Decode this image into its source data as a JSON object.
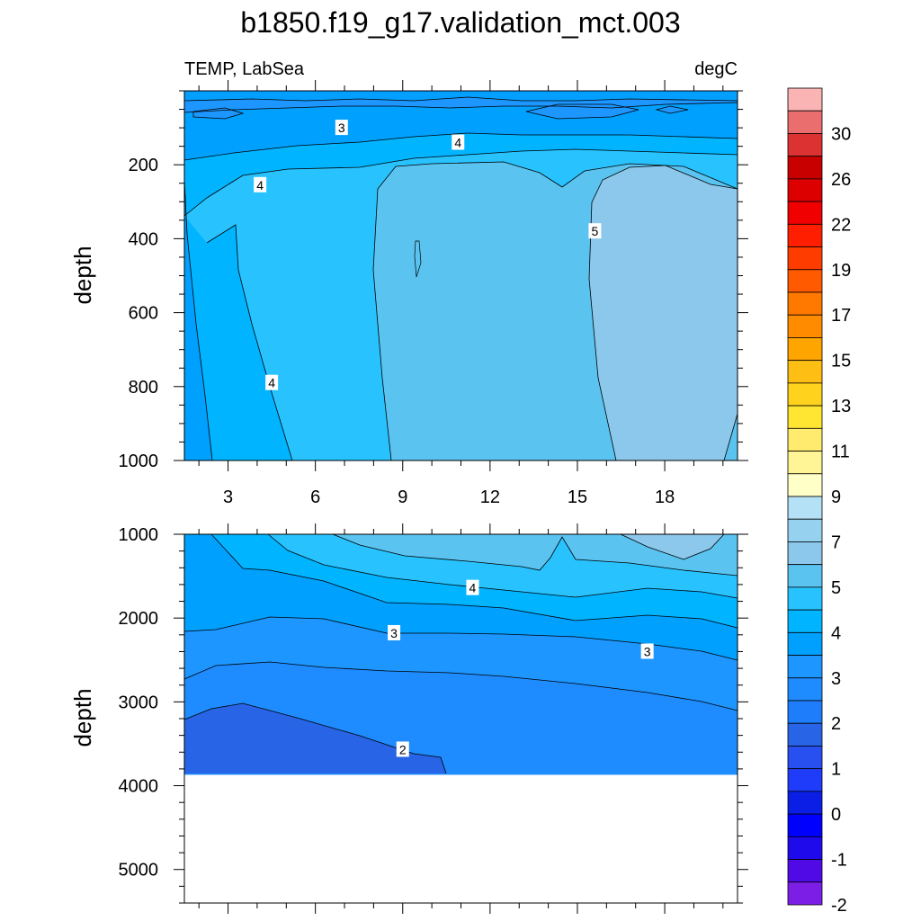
{
  "chart_data": {
    "type": "filled-contour",
    "title": "b1850.f19_g17.validation_mct.003",
    "left_string": "TEMP, LabSea",
    "right_string": "degC",
    "x_ticks": [
      "3",
      "6",
      "9",
      "12",
      "15",
      "18"
    ],
    "x_range": [
      1.5,
      20.5
    ],
    "panels": [
      {
        "name": "upper",
        "ylabel": "depth",
        "y_range": [
          0,
          1000
        ],
        "y_ticks": [
          "200",
          "400",
          "600",
          "800",
          "1000"
        ],
        "contour_labels": [
          {
            "text": "3",
            "x": 6.9,
            "y": 100
          },
          {
            "text": "4",
            "x": 10.9,
            "y": 140
          },
          {
            "text": "4",
            "x": 4.1,
            "y": 255
          },
          {
            "text": "5",
            "x": 15.6,
            "y": 380
          },
          {
            "text": "4",
            "x": 4.5,
            "y": 790
          }
        ]
      },
      {
        "name": "lower",
        "ylabel": "depth",
        "y_range": [
          1000,
          5400
        ],
        "y_ticks": [
          "1000",
          "2000",
          "3000",
          "4000",
          "5000"
        ],
        "data_bottom": 3870,
        "contour_labels": [
          {
            "text": "4",
            "x": 11.4,
            "y": 1640
          },
          {
            "text": "3",
            "x": 8.7,
            "y": 2180
          },
          {
            "text": "3",
            "x": 17.4,
            "y": 2400
          },
          {
            "text": "2",
            "x": 9.0,
            "y": 3570
          }
        ]
      }
    ],
    "colorbar": {
      "labels": [
        "30",
        "26",
        "22",
        "19",
        "17",
        "15",
        "13",
        "11",
        "9",
        "7",
        "5",
        "4",
        "3",
        "2",
        "1",
        "0",
        "-1",
        "-2"
      ],
      "colors": [
        "#fbb4b4",
        "#ea6e6e",
        "#dc3232",
        "#c80000",
        "#dc0000",
        "#f00000",
        "#ff1e00",
        "#ff3c00",
        "#ff5a00",
        "#ff7800",
        "#ff8c00",
        "#ffa500",
        "#ffbe14",
        "#ffd21e",
        "#ffe632",
        "#ffeb6e",
        "#fff596",
        "#ffffc8",
        "#b4e1f5",
        "#96d2f0",
        "#8cc8eb",
        "#5ac3f0",
        "#28c3ff",
        "#00b4ff",
        "#00a0ff",
        "#1e96ff",
        "#1e8cff",
        "#1e7dfa",
        "#2864e6",
        "#2850f0",
        "#1e3cfa",
        "#0a1ee6",
        "#0000ff",
        "#1e0aeb",
        "#500ae6",
        "#7d1ee6"
      ]
    }
  }
}
